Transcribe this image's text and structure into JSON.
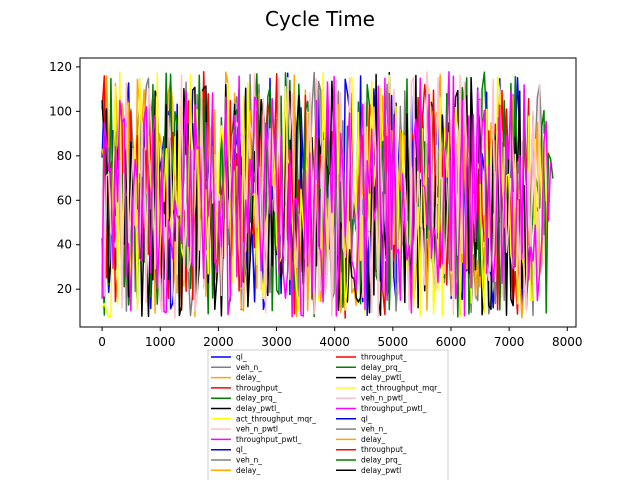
{
  "chart_data": {
    "type": "line",
    "title": "Cycle Time",
    "xlabel": "",
    "ylabel": "",
    "xlim": [
      -380,
      8150
    ],
    "ylim": [
      3,
      124
    ],
    "xticks": [
      0,
      1000,
      2000,
      3000,
      4000,
      5000,
      6000,
      7000,
      8000
    ],
    "yticks": [
      20,
      40,
      60,
      80,
      100,
      120
    ],
    "grid": false,
    "legend_position": "bottom-center",
    "value_range": [
      7,
      118
    ],
    "series": [
      {
        "name": "ql_",
        "color": "#0000ff",
        "end_x": 7300,
        "seed": 11,
        "values_note": ""
      },
      {
        "name": "veh_n_",
        "color": "#808080",
        "end_x": 7600,
        "seed": 23,
        "values_note": ""
      },
      {
        "name": "delay_",
        "color": "#ffa500",
        "end_x": 7700,
        "seed": 37,
        "values_note": ""
      },
      {
        "name": "throughput_",
        "color": "#ff0000",
        "end_x": 7400,
        "seed": 41,
        "values_note": ""
      },
      {
        "name": "delay_prq_",
        "color": "#008000",
        "end_x": 7760,
        "seed": 53,
        "values_note": ""
      },
      {
        "name": "delay_pwtl_",
        "color": "#000000",
        "end_x": 7500,
        "seed": 67,
        "values_note": ""
      },
      {
        "name": "act_throughput_mqr_",
        "color": "#ffff00",
        "end_x": 7650,
        "seed": 71,
        "values_note": ""
      },
      {
        "name": "veh_n_pwtl_",
        "color": "#ffc0cb",
        "end_x": 7550,
        "seed": 83,
        "values_note": ""
      },
      {
        "name": "throughput_pwtl_",
        "color": "#ff00ff",
        "end_x": 7750,
        "seed": 97,
        "values_note": ""
      }
    ],
    "legend_entries": [
      {
        "label": "ql_",
        "color": "#0000ff"
      },
      {
        "label": "veh_n_",
        "color": "#808080"
      },
      {
        "label": "delay_",
        "color": "#ffa500"
      },
      {
        "label": "throughput_",
        "color": "#ff0000"
      },
      {
        "label": "delay_prq_",
        "color": "#008000"
      },
      {
        "label": "delay_pwtl_",
        "color": "#000000"
      },
      {
        "label": "act_throughput_mqr_",
        "color": "#ffff00"
      },
      {
        "label": "veh_n_pwtl_",
        "color": "#ffc0cb"
      },
      {
        "label": "throughput_pwtl_",
        "color": "#ff00ff"
      },
      {
        "label": "ql_",
        "color": "#0000ff"
      },
      {
        "label": "veh_n_",
        "color": "#808080"
      },
      {
        "label": "delay_",
        "color": "#ffa500"
      },
      {
        "label": "throughput_",
        "color": "#ff0000"
      },
      {
        "label": "delay_prq_",
        "color": "#008000"
      },
      {
        "label": "delay_pwtl_",
        "color": "#000000"
      },
      {
        "label": "act_throughput_mqr_",
        "color": "#ffff00"
      },
      {
        "label": "veh_n_pwtl_",
        "color": "#ffc0cb"
      },
      {
        "label": "throughput_pwtl_",
        "color": "#ff00ff"
      },
      {
        "label": "ql_",
        "color": "#0000ff"
      },
      {
        "label": "veh_n_",
        "color": "#808080"
      },
      {
        "label": "delay_",
        "color": "#ffa500"
      },
      {
        "label": "throughput_",
        "color": "#ff0000"
      },
      {
        "label": "delay_prq_",
        "color": "#008000"
      },
      {
        "label": "delay_pwtl",
        "color": "#000000"
      }
    ]
  }
}
